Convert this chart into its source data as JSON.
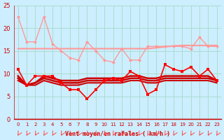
{
  "background_color": "#cceeff",
  "grid_color": "#aaddcc",
  "xlabel": "Vent moyen/en rafales ( km/h )",
  "x_hours": [
    0,
    1,
    2,
    3,
    4,
    5,
    6,
    7,
    8,
    9,
    10,
    11,
    12,
    13,
    14,
    15,
    16,
    17,
    18,
    19,
    20,
    21,
    22,
    23
  ],
  "ylim": [
    0,
    25
  ],
  "yticks": [
    0,
    5,
    10,
    15,
    20,
    25
  ],
  "line_light_pink_1": [
    22.5,
    17,
    17,
    22.5,
    16.5,
    15,
    13.5,
    13,
    17,
    15,
    13,
    12.5,
    15.5,
    13,
    13,
    16,
    16,
    16,
    16,
    16,
    15.5,
    18,
    16,
    16
  ],
  "line_light_pink_2": [
    15.5,
    15.5,
    15.5,
    15.5,
    15.5,
    15.5,
    15.5,
    15.5,
    15.5,
    15.5,
    15.5,
    15.5,
    15.5,
    15.5,
    15.5,
    15.5,
    15.7,
    15.9,
    16.1,
    16.2,
    16.2,
    16.2,
    16.2,
    16.2
  ],
  "line_red_markers": [
    11,
    7.5,
    9.5,
    9.5,
    9.5,
    8,
    6.5,
    6.5,
    4.5,
    6.5,
    8.5,
    9,
    8.5,
    10.5,
    9.5,
    5.5,
    6.5,
    12,
    11,
    10.5,
    11.5,
    9.5,
    11,
    8.5
  ],
  "line_dark_red_1": [
    9.5,
    7.5,
    8,
    9.5,
    9,
    8.5,
    8.5,
    8.5,
    9,
    9,
    9,
    9,
    9,
    9.5,
    9.5,
    9,
    9,
    9.5,
    9.5,
    9.5,
    9.5,
    9.5,
    9.5,
    8.5
  ],
  "line_dark_red_2": [
    9,
    7.5,
    8,
    9,
    8.5,
    8,
    8,
    8,
    8.5,
    8.5,
    8.5,
    8.5,
    8.5,
    9,
    9,
    8.5,
    8.5,
    9,
    9,
    9,
    9,
    9,
    9,
    8.5
  ],
  "line_dark_red_3": [
    8.5,
    7.5,
    7.5,
    8.5,
    8,
    7.5,
    7.5,
    7.5,
    8,
    8,
    8,
    8,
    8,
    8.5,
    8.5,
    8,
    8,
    8.5,
    8.5,
    8.5,
    8.5,
    8.5,
    8.5,
    8.0
  ],
  "arrow_color": "#ff4444",
  "text_color": "#cc0000",
  "line_colors": {
    "light_pink": "#ff9999",
    "medium_pink": "#ffaaaa",
    "dark_red": "#cc0000",
    "red": "#ff0000"
  }
}
